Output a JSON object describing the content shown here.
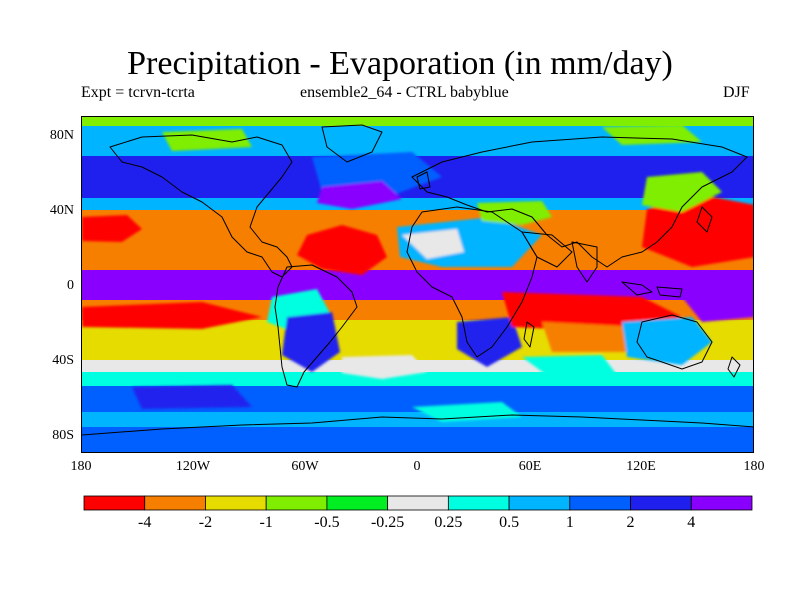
{
  "header": {
    "title": "Precipitation - Evaporation (in mm/day)",
    "subtitle_left": "Expt = tcrvn-tcrta",
    "subtitle_center": "ensemble2_64 - CTRL babyblue",
    "subtitle_right": "DJF"
  },
  "map": {
    "projection": "cylindrical equidistant",
    "lat_range": [
      -90,
      90
    ],
    "lon_range": [
      -180,
      180
    ],
    "lat_labels": [
      "80N",
      "40N",
      "0",
      "40S",
      "80S"
    ],
    "lon_labels": [
      "180",
      "120W",
      "60W",
      "0",
      "60E",
      "120E",
      "180"
    ]
  },
  "colorbar": {
    "labels": [
      "-4",
      "-2",
      "-1",
      "-0.5",
      "-0.25",
      "0.25",
      "0.5",
      "1",
      "2",
      "4"
    ],
    "colors": [
      "#ff0000",
      "#f77f00",
      "#e6dc00",
      "#80ee00",
      "#00ee22",
      "#e8e8e8",
      "#00ffe0",
      "#00b4ff",
      "#0060ff",
      "#2020ee",
      "#8a00ff"
    ]
  }
}
